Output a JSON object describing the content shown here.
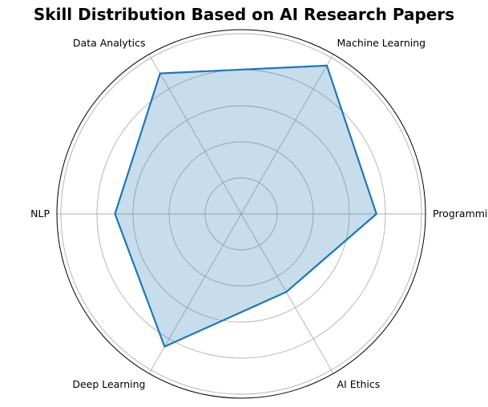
{
  "chart_data": {
    "type": "radar",
    "title": "Skill Distribution Based on AI Research Papers",
    "categories": [
      "Programming",
      "Machine Learning",
      "Data Analytics",
      "NLP",
      "Deep Learning",
      "AI Ethics"
    ],
    "series": [
      {
        "values": [
          75,
          95,
          90,
          70,
          85,
          50
        ]
      }
    ],
    "rlim": [
      0,
      100
    ],
    "rings": [
      20,
      40,
      60,
      80,
      100
    ],
    "grid": true,
    "line_color": "#1f77b4",
    "fill_color": "#1f77b4"
  }
}
